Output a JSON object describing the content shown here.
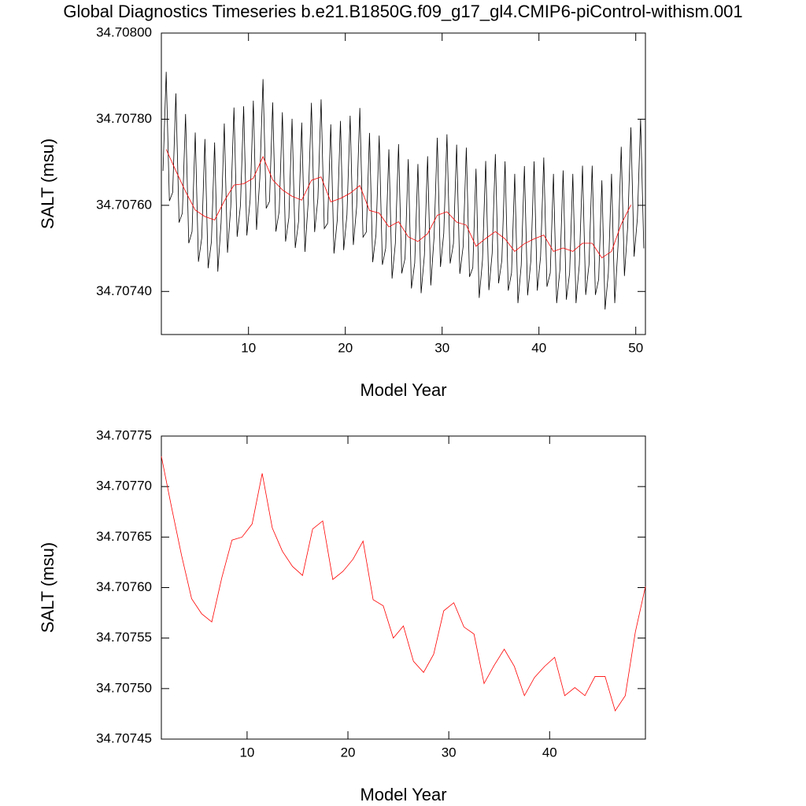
{
  "chart_data": [
    {
      "type": "line",
      "title": "Global Diagnostics Timeseries b.e21.B1850G.f09_g17_gl4.CMIP6-piControl-withism.001",
      "x_label": "Model Year",
      "y_label": "SALT (msu)",
      "xlim": [
        1,
        51
      ],
      "xticks": [
        10,
        20,
        30,
        40,
        50
      ],
      "ylim": [
        34.7073,
        34.708
      ],
      "yticks": [
        {
          "value": 34.7074,
          "label": "34.70740"
        },
        {
          "value": 34.7076,
          "label": "34.70760"
        },
        {
          "value": 34.7078,
          "label": "34.70780"
        },
        {
          "value": 34.708,
          "label": "34.70800"
        }
      ],
      "series": [
        {
          "color": "#000000",
          "x": [
            1.17,
            1.5,
            1.83,
            2.17,
            2.5,
            2.83,
            3.17,
            3.5,
            3.83,
            4.17,
            4.5,
            4.83,
            5.17,
            5.5,
            5.83,
            6.17,
            6.5,
            6.83,
            7.17,
            7.5,
            7.83,
            8.17,
            8.5,
            8.83,
            9.17,
            9.5,
            9.83,
            10.17,
            10.5,
            10.83,
            11.17,
            11.5,
            11.83,
            12.17,
            12.5,
            12.83,
            13.17,
            13.5,
            13.83,
            14.17,
            14.5,
            14.83,
            15.17,
            15.5,
            15.83,
            16.17,
            16.5,
            16.83,
            17.17,
            17.5,
            17.83,
            18.17,
            18.5,
            18.83,
            19.17,
            19.5,
            19.83,
            20.17,
            20.5,
            20.83,
            21.17,
            21.5,
            21.83,
            22.17,
            22.5,
            22.83,
            23.17,
            23.5,
            23.83,
            24.17,
            24.5,
            24.83,
            25.17,
            25.5,
            25.83,
            26.17,
            26.5,
            26.83,
            27.17,
            27.5,
            27.83,
            28.17,
            28.5,
            28.83,
            29.17,
            29.5,
            29.83,
            30.17,
            30.5,
            30.83,
            31.17,
            31.5,
            31.83,
            32.17,
            32.5,
            32.83,
            33.17,
            33.5,
            33.83,
            34.17,
            34.5,
            34.83,
            35.17,
            35.5,
            35.83,
            36.17,
            36.5,
            36.83,
            37.17,
            37.5,
            37.83,
            38.17,
            38.5,
            38.83,
            39.17,
            39.5,
            39.83,
            40.17,
            40.5,
            40.83,
            41.17,
            41.5,
            41.83,
            42.17,
            42.5,
            42.83,
            43.17,
            43.5,
            43.83,
            44.17,
            44.5,
            44.83,
            45.17,
            45.5,
            45.83,
            46.17,
            46.5,
            46.83,
            47.17,
            47.5,
            47.83,
            48.17,
            48.5,
            48.83,
            49.17,
            49.5,
            49.83,
            50.17,
            50.5,
            50.83
          ],
          "values": [
            34.70768,
            34.70791,
            34.70761,
            34.70763,
            34.70786,
            34.70756,
            34.707582,
            34.707812,
            34.707512,
            34.707539,
            34.707769,
            34.707469,
            34.707524,
            34.707754,
            34.707454,
            34.707516,
            34.707746,
            34.707446,
            34.70756,
            34.70779,
            34.70749,
            34.707597,
            34.707827,
            34.707527,
            34.7076,
            34.70783,
            34.70753,
            34.707613,
            34.707843,
            34.707543,
            34.707663,
            34.707893,
            34.707593,
            34.707609,
            34.707839,
            34.707539,
            34.707586,
            34.707816,
            34.707516,
            34.707571,
            34.707801,
            34.707501,
            34.707562,
            34.707792,
            34.707492,
            34.707608,
            34.707838,
            34.707538,
            34.707616,
            34.707846,
            34.707546,
            34.707558,
            34.707788,
            34.707488,
            34.707566,
            34.707796,
            34.707496,
            34.707578,
            34.707808,
            34.707508,
            34.707596,
            34.707826,
            34.707526,
            34.707538,
            34.707768,
            34.707468,
            34.707532,
            34.707762,
            34.707462,
            34.7075,
            34.70773,
            34.70743,
            34.707512,
            34.707742,
            34.707442,
            34.707477,
            34.707707,
            34.707407,
            34.707466,
            34.707696,
            34.707396,
            34.707484,
            34.707714,
            34.707414,
            34.707527,
            34.707757,
            34.707457,
            34.707535,
            34.707765,
            34.707465,
            34.707511,
            34.707741,
            34.707441,
            34.707504,
            34.707734,
            34.707434,
            34.707455,
            34.707685,
            34.707385,
            34.707473,
            34.707703,
            34.707403,
            34.707489,
            34.707719,
            34.707419,
            34.707472,
            34.707702,
            34.707402,
            34.707443,
            34.707673,
            34.707373,
            34.707461,
            34.707691,
            34.707391,
            34.707472,
            34.707702,
            34.707402,
            34.707481,
            34.707711,
            34.707411,
            34.707443,
            34.707673,
            34.707373,
            34.707451,
            34.707681,
            34.707381,
            34.707443,
            34.707673,
            34.707373,
            34.707462,
            34.707692,
            34.707392,
            34.707462,
            34.707692,
            34.707392,
            34.707428,
            34.707658,
            34.707358,
            34.707443,
            34.707673,
            34.707373,
            34.707506,
            34.707736,
            34.707436,
            34.707551,
            34.707781,
            34.707481,
            34.70757,
            34.7078,
            34.7075
          ]
        },
        {
          "color": "#ff0000",
          "x": [
            1.5,
            2.5,
            3.5,
            4.5,
            5.5,
            6.5,
            7.5,
            8.5,
            9.5,
            10.5,
            11.5,
            12.5,
            13.5,
            14.5,
            15.5,
            16.5,
            17.5,
            18.5,
            19.5,
            20.5,
            21.5,
            22.5,
            23.5,
            24.5,
            25.5,
            26.5,
            27.5,
            28.5,
            29.5,
            30.5,
            31.5,
            32.5,
            33.5,
            34.5,
            35.5,
            36.5,
            37.5,
            38.5,
            39.5,
            40.5,
            41.5,
            42.5,
            43.5,
            44.5,
            45.5,
            46.5,
            47.5,
            48.5,
            49.5
          ],
          "values": [
            34.70773,
            34.70768,
            34.707632,
            34.707589,
            34.707574,
            34.707566,
            34.70761,
            34.707647,
            34.70765,
            34.707663,
            34.707713,
            34.707659,
            34.707636,
            34.707621,
            34.707612,
            34.707658,
            34.707666,
            34.707608,
            34.707616,
            34.707628,
            34.707646,
            34.707588,
            34.707582,
            34.70755,
            34.707562,
            34.707527,
            34.707516,
            34.707534,
            34.707577,
            34.707585,
            34.707561,
            34.707554,
            34.707505,
            34.707523,
            34.707539,
            34.707522,
            34.707493,
            34.707511,
            34.707522,
            34.707531,
            34.707493,
            34.707501,
            34.707493,
            34.707512,
            34.707512,
            34.707478,
            34.707493,
            34.707556,
            34.707601
          ]
        }
      ]
    },
    {
      "type": "line",
      "x_label": "Model Year",
      "y_label": "SALT (msu)",
      "xlim": [
        1.5,
        49.5
      ],
      "xticks": [
        10,
        20,
        30,
        40
      ],
      "ylim": [
        34.70745,
        34.70775
      ],
      "yticks": [
        {
          "value": 34.70745,
          "label": "34.70745"
        },
        {
          "value": 34.7075,
          "label": "34.70750"
        },
        {
          "value": 34.70755,
          "label": "34.70755"
        },
        {
          "value": 34.7076,
          "label": "34.70760"
        },
        {
          "value": 34.70765,
          "label": "34.70765"
        },
        {
          "value": 34.7077,
          "label": "34.70770"
        },
        {
          "value": 34.70775,
          "label": "34.70775"
        }
      ],
      "series": [
        {
          "color": "#ff0000",
          "x": [
            1.5,
            2.5,
            3.5,
            4.5,
            5.5,
            6.5,
            7.5,
            8.5,
            9.5,
            10.5,
            11.5,
            12.5,
            13.5,
            14.5,
            15.5,
            16.5,
            17.5,
            18.5,
            19.5,
            20.5,
            21.5,
            22.5,
            23.5,
            24.5,
            25.5,
            26.5,
            27.5,
            28.5,
            29.5,
            30.5,
            31.5,
            32.5,
            33.5,
            34.5,
            35.5,
            36.5,
            37.5,
            38.5,
            39.5,
            40.5,
            41.5,
            42.5,
            43.5,
            44.5,
            45.5,
            46.5,
            47.5,
            48.5,
            49.5
          ],
          "values": [
            34.70773,
            34.70768,
            34.707632,
            34.707589,
            34.707574,
            34.707566,
            34.70761,
            34.707647,
            34.70765,
            34.707663,
            34.707713,
            34.707659,
            34.707636,
            34.707621,
            34.707612,
            34.707658,
            34.707666,
            34.707608,
            34.707616,
            34.707628,
            34.707646,
            34.707588,
            34.707582,
            34.70755,
            34.707562,
            34.707527,
            34.707516,
            34.707534,
            34.707577,
            34.707585,
            34.707561,
            34.707554,
            34.707505,
            34.707523,
            34.707539,
            34.707522,
            34.707493,
            34.707511,
            34.707522,
            34.707531,
            34.707493,
            34.707501,
            34.707493,
            34.707512,
            34.707512,
            34.707478,
            34.707493,
            34.707556,
            34.707601
          ]
        }
      ]
    }
  ]
}
